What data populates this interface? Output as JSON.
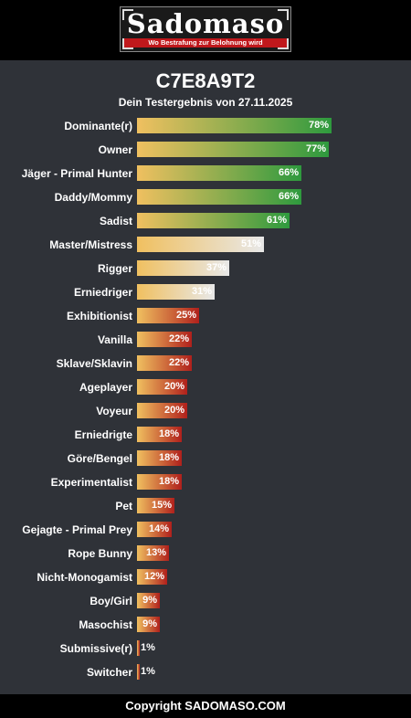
{
  "header": {
    "logo_text": "Sadomaso",
    "logo_tagline": "Wo Bestrafung zur Belohnung wird"
  },
  "footer": {
    "copyright": "Copyright SADOMASO.COM"
  },
  "colors": {
    "background": "#2f3238",
    "high_gradient": [
      "#f0c060",
      "#2e9a3e"
    ],
    "mid_gradient": [
      "#f0c060",
      "#e8e8e8"
    ],
    "low_gradient": [
      "#f0c060",
      "#b0201c"
    ]
  },
  "chart_data": {
    "type": "bar",
    "orientation": "horizontal",
    "title": "C7E8A9T2",
    "subtitle": "Dein Testergebnis von 27.11.2025",
    "xlim": [
      0,
      100
    ],
    "categories": [
      "Dominante(r)",
      "Owner",
      "Jäger - Primal Hunter",
      "Daddy/Mommy",
      "Sadist",
      "Master/Mistress",
      "Rigger",
      "Erniedriger",
      "Exhibitionist",
      "Vanilla",
      "Sklave/Sklavin",
      "Ageplayer",
      "Voyeur",
      "Erniedrigte",
      "Göre/Bengel",
      "Experimentalist",
      "Pet",
      "Gejagte - Primal Prey",
      "Rope Bunny",
      "Nicht-Monogamist",
      "Boy/Girl",
      "Masochist",
      "Submissive(r)",
      "Switcher"
    ],
    "values": [
      78,
      77,
      66,
      66,
      61,
      51,
      37,
      31,
      25,
      22,
      22,
      20,
      20,
      18,
      18,
      18,
      15,
      14,
      13,
      12,
      9,
      9,
      1,
      1
    ],
    "value_labels": [
      "78%",
      "77%",
      "66%",
      "66%",
      "61%",
      "51%",
      "37%",
      "31%",
      "25%",
      "22%",
      "22%",
      "20%",
      "20%",
      "18%",
      "18%",
      "18%",
      "15%",
      "14%",
      "13%",
      "12%",
      "9%",
      "9%",
      "1%",
      "1%"
    ]
  }
}
